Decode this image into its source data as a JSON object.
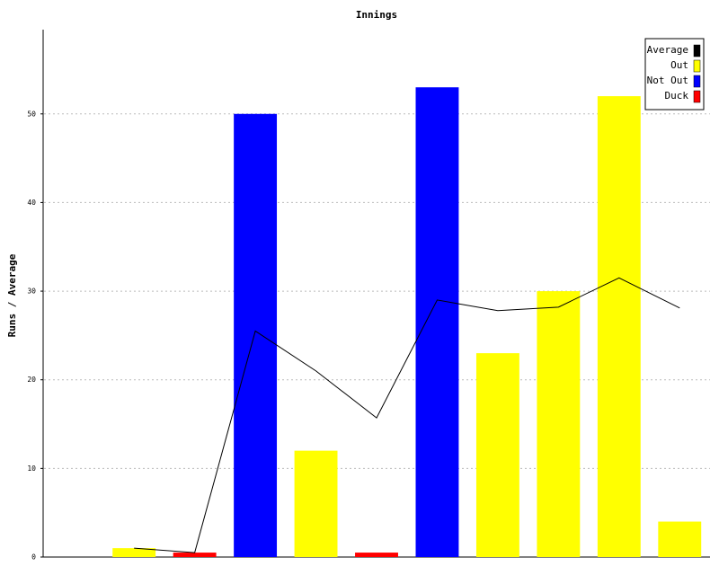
{
  "chart_data": {
    "type": "bar",
    "title": "Innings",
    "y_label": "Runs / Average",
    "categories": [
      null,
      null,
      null,
      null,
      null,
      null,
      null,
      null,
      null,
      null,
      null
    ],
    "series": [
      {
        "name": "Average",
        "type": "line",
        "color": "#000000",
        "values": [
          null,
          1,
          0.5,
          25.5,
          21,
          15.7,
          29,
          27.8,
          28.2,
          31.5,
          28.1
        ]
      },
      {
        "name": "Out",
        "type": "bar",
        "color": "#ffff00",
        "values": [
          null,
          1,
          null,
          null,
          12,
          null,
          null,
          23,
          30,
          52,
          4
        ]
      },
      {
        "name": "Not Out",
        "type": "bar",
        "color": "#0000ff",
        "values": [
          null,
          null,
          null,
          50,
          null,
          null,
          53,
          null,
          null,
          null,
          null
        ]
      },
      {
        "name": "Duck",
        "type": "bar",
        "color": "#ff0000",
        "values": [
          null,
          null,
          0.5,
          null,
          null,
          0.5,
          null,
          null,
          null,
          null,
          null
        ]
      }
    ],
    "ylim": [
      0,
      59
    ],
    "yticks": [
      0,
      10,
      20,
      30,
      40,
      50
    ],
    "grid": true,
    "legend": "upper right"
  }
}
